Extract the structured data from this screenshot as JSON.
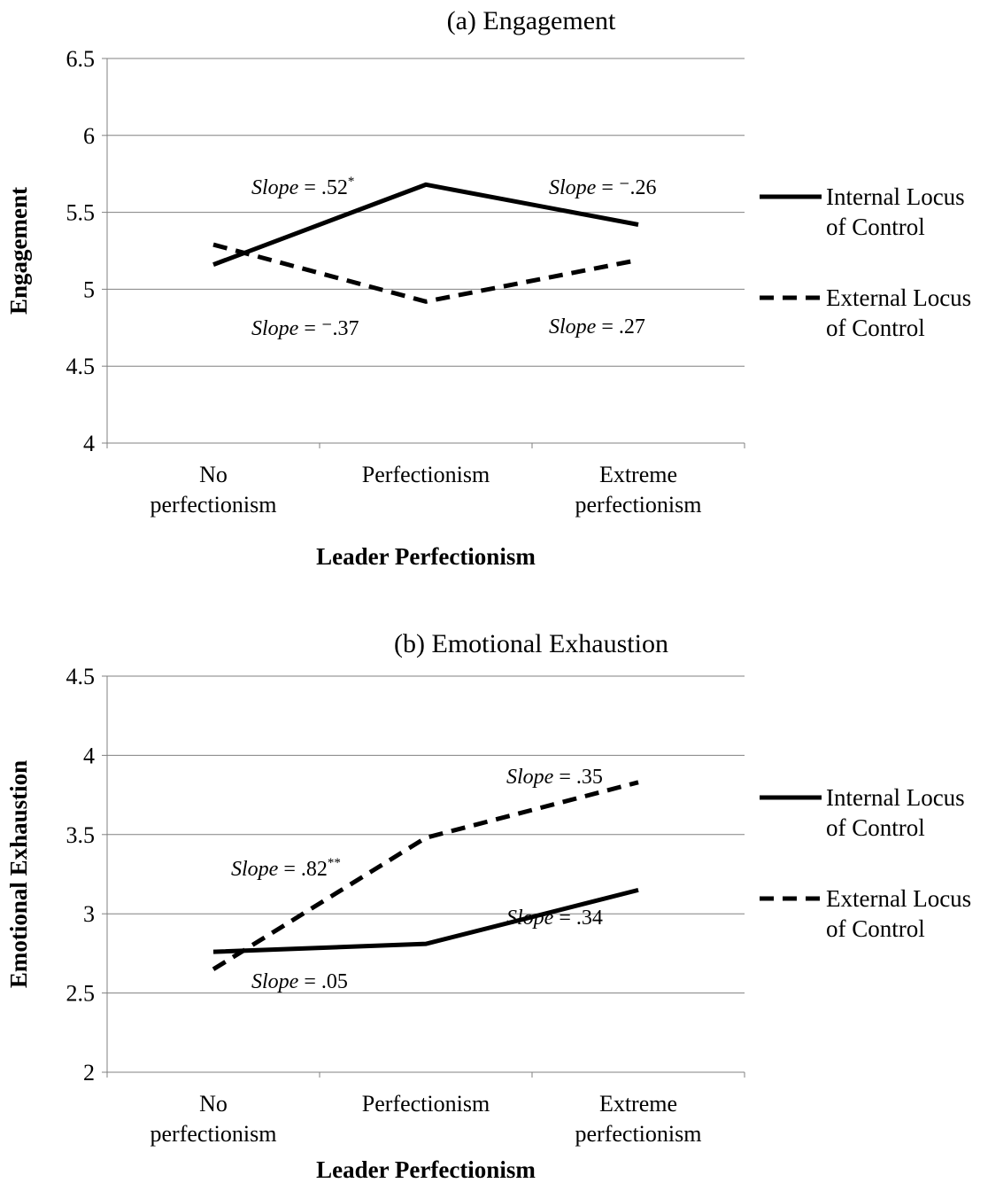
{
  "chart_data": [
    {
      "type": "line",
      "title": "(a) Engagement",
      "xlabel": "Leader Perfectionism",
      "ylabel": "Engagement",
      "categories": [
        [
          "No",
          "perfectionism"
        ],
        [
          "Perfectionism"
        ],
        [
          "Extreme",
          "perfectionism"
        ]
      ],
      "ylim": [
        4,
        6.5
      ],
      "yticks": [
        "6.5",
        "6",
        "5.5",
        "5",
        "4.5",
        "4"
      ],
      "grid": true,
      "legend_position": "right",
      "series": [
        {
          "name": "Internal Locus of Control",
          "legend_lines": [
            "Internal Locus",
            "of Control"
          ],
          "style": "solid",
          "values": [
            5.16,
            5.68,
            5.42
          ]
        },
        {
          "name": "External Locus of Control",
          "legend_lines": [
            "External Locus",
            "of Control"
          ],
          "style": "dashed",
          "values": [
            5.29,
            4.92,
            5.19
          ]
        }
      ],
      "annotations": [
        {
          "italic": "Slope",
          "rest": " = .52",
          "sup": "*"
        },
        {
          "italic": "Slope",
          "rest": " = ⁻.26",
          "sup": ""
        },
        {
          "italic": "Slope",
          "rest": " = ⁻.37",
          "sup": ""
        },
        {
          "italic": "Slope",
          "rest": " = .27",
          "sup": ""
        }
      ]
    },
    {
      "type": "line",
      "title": "(b) Emotional Exhaustion",
      "xlabel": "Leader Perfectionism",
      "ylabel": "Emotional Exhaustion",
      "categories": [
        [
          "No",
          "perfectionism"
        ],
        [
          "Perfectionism"
        ],
        [
          "Extreme",
          "perfectionism"
        ]
      ],
      "ylim": [
        2,
        4.5
      ],
      "yticks": [
        "4.5",
        "4",
        "3.5",
        "3",
        "2.5",
        "2"
      ],
      "grid": true,
      "legend_position": "right",
      "series": [
        {
          "name": "Internal Locus of Control",
          "legend_lines": [
            "Internal Locus",
            "of Control"
          ],
          "style": "solid",
          "values": [
            2.76,
            2.81,
            3.15
          ]
        },
        {
          "name": "External Locus of Control",
          "legend_lines": [
            "External Locus",
            "of Control"
          ],
          "style": "dashed",
          "values": [
            2.65,
            3.48,
            3.83
          ]
        }
      ],
      "annotations": [
        {
          "italic": "Slope",
          "rest": " = .35",
          "sup": ""
        },
        {
          "italic": "Slope",
          "rest": " = .82",
          "sup": "**"
        },
        {
          "italic": "Slope",
          "rest": " = .34",
          "sup": ""
        },
        {
          "italic": "Slope",
          "rest": " = .05",
          "sup": ""
        }
      ]
    }
  ]
}
